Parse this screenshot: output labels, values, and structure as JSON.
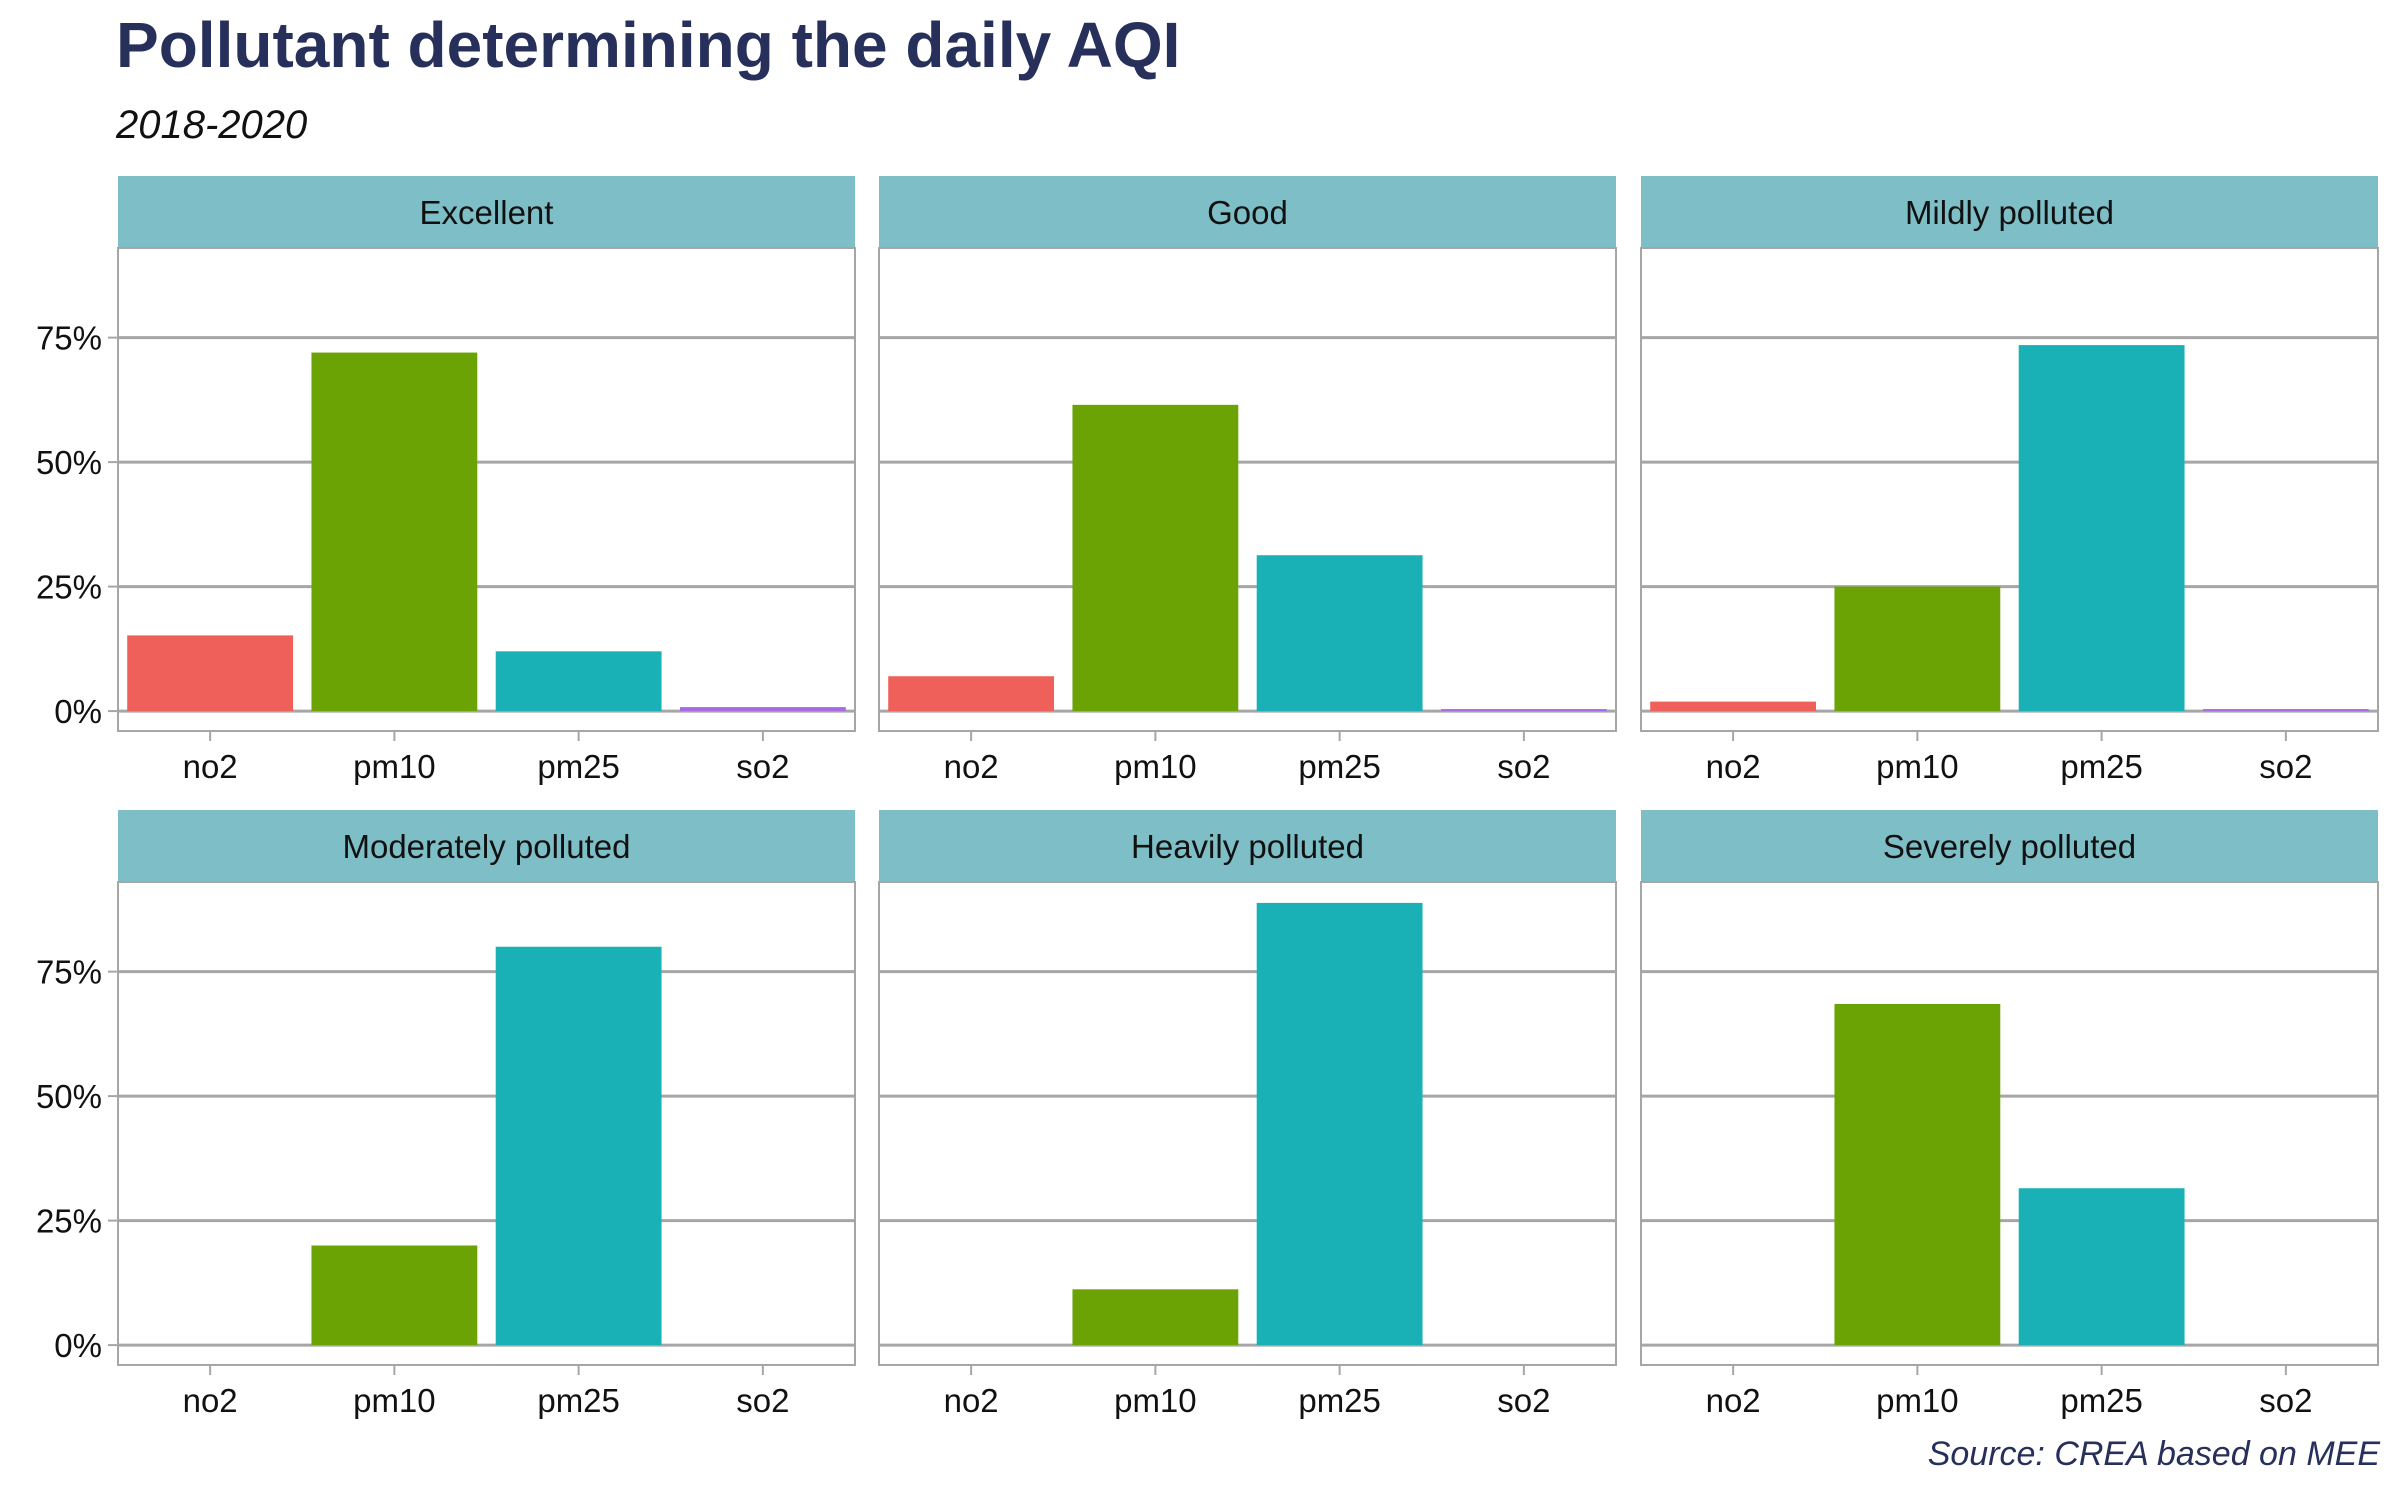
{
  "title": "Pollutant determining the daily AQI",
  "subtitle": "2018-2020",
  "caption": "Source: CREA based on MEE",
  "colors": {
    "no2": "#f0605a",
    "pm10": "#6aa303",
    "pm25": "#19b1b6",
    "so2": "#a76ae3",
    "strip": "#7ebec6",
    "grid": "#a6a6a6",
    "title": "#27305a"
  },
  "chart_data": {
    "type": "bar",
    "categories": [
      "no2",
      "pm10",
      "pm25",
      "so2"
    ],
    "y_tick_labels": [
      "0%",
      "25%",
      "50%",
      "75%"
    ],
    "y_ticks": [
      0,
      25,
      50,
      75
    ],
    "ylim": [
      -4,
      93
    ],
    "facets": [
      {
        "name": "Excellent",
        "values": [
          15.2,
          72.0,
          12.0,
          0.8
        ]
      },
      {
        "name": "Good",
        "values": [
          7.0,
          61.5,
          31.3,
          0.4
        ]
      },
      {
        "name": "Mildly polluted",
        "values": [
          1.9,
          25.0,
          73.5,
          0.4
        ]
      },
      {
        "name": "Moderately polluted",
        "values": [
          0,
          20.0,
          80.0,
          0
        ]
      },
      {
        "name": "Heavily polluted",
        "values": [
          0,
          11.2,
          88.8,
          0
        ]
      },
      {
        "name": "Severely polluted",
        "values": [
          0,
          68.5,
          31.5,
          0
        ]
      }
    ]
  }
}
